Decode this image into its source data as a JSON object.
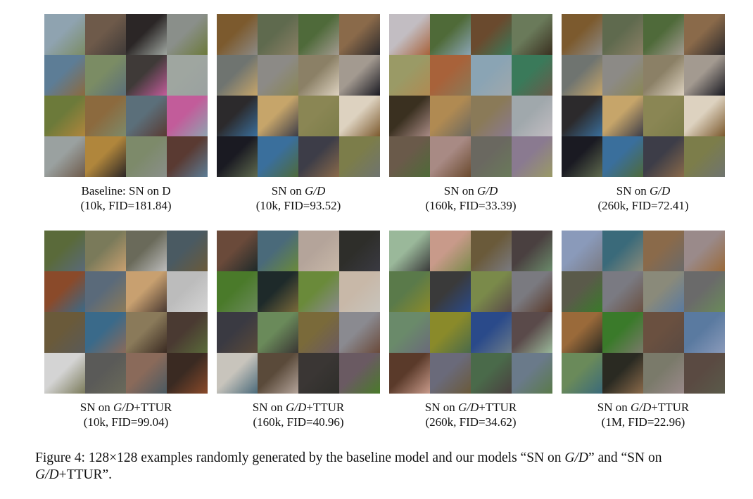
{
  "panels": [
    {
      "caption_line1_prefix": "Baseline: SN on D",
      "caption_line1_italic": "",
      "caption_line1_suffix": "",
      "caption_line2": "(10k, FID=181.84)",
      "tiles": [
        "#8fa3b0",
        "#6e5a4a",
        "#2b2626",
        "#8a8f8a",
        "#5d7d96",
        "#7b8c64",
        "#3f3a38",
        "#9fa6a0",
        "#6c7a3a",
        "#8c6a3e",
        "#5b6f7a",
        "#c25c9a",
        "#9aa1a0",
        "#b0863c",
        "#7d8a6a",
        "#5a3a32"
      ]
    },
    {
      "caption_line1_prefix": "SN on ",
      "caption_line1_italic": "G/D",
      "caption_line1_suffix": "",
      "caption_line2": "(10k, FID=93.52)",
      "tiles": [
        "#7c5a2e",
        "#5f6a4e",
        "#4f6a3a",
        "#8a6a4a",
        "#6f7470",
        "#8c8a86",
        "#8b8066",
        "#a39a90",
        "#2c2a2c",
        "#c6a56a",
        "#8a8654",
        "#ddd2c0",
        "#1a1a22",
        "#3a6f9c",
        "#3d3d48",
        "#7c7d4a"
      ]
    },
    {
      "caption_line1_prefix": "SN on ",
      "caption_line1_italic": "G/D",
      "caption_line1_suffix": "",
      "caption_line2": "(160k, FID=33.39)",
      "tiles": [
        "#c2bdc2",
        "#4f6a38",
        "#6a4a2e",
        "#6a7a5a",
        "#9a9a66",
        "#a8623a",
        "#8aa4b4",
        "#3a7a5a",
        "#3a3020",
        "#b08a52",
        "#8a7a58",
        "#a0a8ac",
        "#6a5a4a",
        "#a88a84",
        "#6a6860",
        "#8a7a90"
      ]
    },
    {
      "caption_line1_prefix": "SN on ",
      "caption_line1_italic": "G/D",
      "caption_line1_suffix": "",
      "caption_line2": "(260k, FID=72.41)",
      "tiles": [
        "#7c5a2e",
        "#5f6a4e",
        "#4f6a3a",
        "#8a6a4a",
        "#6f7470",
        "#8c8a86",
        "#8b8066",
        "#a39a90",
        "#2c2a2c",
        "#c6a56a",
        "#8a8654",
        "#ddd2c0",
        "#1a1a22",
        "#3a6f9c",
        "#3d3d48",
        "#7c7d4a"
      ]
    },
    {
      "caption_line1_prefix": "SN on ",
      "caption_line1_italic": "G/D",
      "caption_line1_suffix": "+TTUR",
      "caption_line2": "(10k, FID=99.04)",
      "tiles": [
        "#5a6a3a",
        "#7a7a5a",
        "#6a6a5a",
        "#4a5a62",
        "#8a4a2a",
        "#5a6a7a",
        "#c8a070",
        "#bcbcbc",
        "#6a5a3a",
        "#3a6a8a",
        "#8a7a5a",
        "#4a3a32",
        "#d4d4d4",
        "#5a5a58",
        "#8a6a5a",
        "#3a2a22"
      ]
    },
    {
      "caption_line1_prefix": "SN on ",
      "caption_line1_italic": "G/D",
      "caption_line1_suffix": "+TTUR",
      "caption_line2": "(160k, FID=40.96)",
      "tiles": [
        "#6a4a3a",
        "#4a6a7a",
        "#b4a49a",
        "#2e2e2a",
        "#4a7a2a",
        "#1e2a2a",
        "#6a8a3a",
        "#c8b8a8",
        "#3a3a42",
        "#6a8a5a",
        "#7a6a3a",
        "#8a8a90",
        "#c8c4bc",
        "#5a4a3a",
        "#3a3634",
        "#6a5a62"
      ]
    },
    {
      "caption_line1_prefix": "SN on ",
      "caption_line1_italic": "G/D",
      "caption_line1_suffix": "+TTUR",
      "caption_line2": "(260k, FID=34.62)",
      "tiles": [
        "#9ab89a",
        "#c89a8a",
        "#6a5a3a",
        "#4a4040",
        "#5a7a4a",
        "#3a3a3a",
        "#7a8a4a",
        "#7a7a80",
        "#6a8a6a",
        "#8a8a2a",
        "#2a4a8a",
        "#5a4a4a",
        "#5a3a2a",
        "#6a6a7a",
        "#4a6a4a",
        "#6a7a8a"
      ]
    },
    {
      "caption_line1_prefix": "SN on ",
      "caption_line1_italic": "G/D",
      "caption_line1_suffix": "+TTUR",
      "caption_line2": "(1M, FID=22.96)",
      "tiles": [
        "#8a9aba",
        "#3a6a7a",
        "#8a6a4a",
        "#9a8a8a",
        "#5a5a4a",
        "#7a7a82",
        "#8a8a7a",
        "#6a6a6a",
        "#9a6a3a",
        "#3a7a2a",
        "#6a5040",
        "#5a7aa0",
        "#6a8a5a",
        "#2a2a22",
        "#7a7a6a",
        "#5a4a42"
      ]
    }
  ],
  "figure_caption": {
    "part1": "Figure 4: 128×128 examples randomly generated by the baseline model and our models “SN on ",
    "italic1": "G/D",
    "part2": "” and “SN on ",
    "italic2": "G/D",
    "part3": "+TTUR”."
  }
}
